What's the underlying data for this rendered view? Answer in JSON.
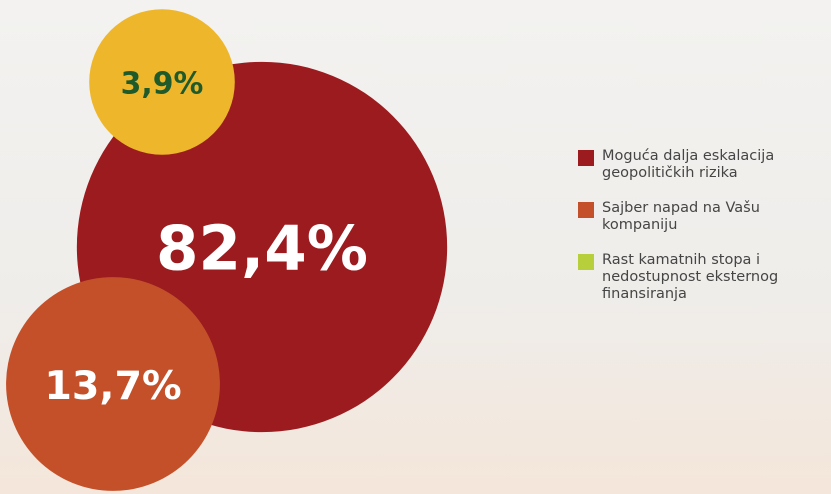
{
  "chart_data": {
    "type": "bubble",
    "categories": [
      "Moguća dalja eskalacija geopolitičkih rizika",
      "Sajber napad na Vašu kompaniju",
      "Rast kamatnih stopa i nedostupnost eksternog finansiranja"
    ],
    "values": [
      82.4,
      13.7,
      3.9
    ],
    "value_labels": [
      "82,4%",
      "13,7%",
      "3,9%"
    ],
    "colors": [
      "#9b1b1f",
      "#c4502a",
      "#eeb72b"
    ],
    "label_colors": [
      "#ffffff",
      "#ffffff",
      "#1f5a2b"
    ],
    "legend_colors": [
      "#9b1b1f",
      "#c4502a",
      "#b6cf3b"
    ]
  }
}
